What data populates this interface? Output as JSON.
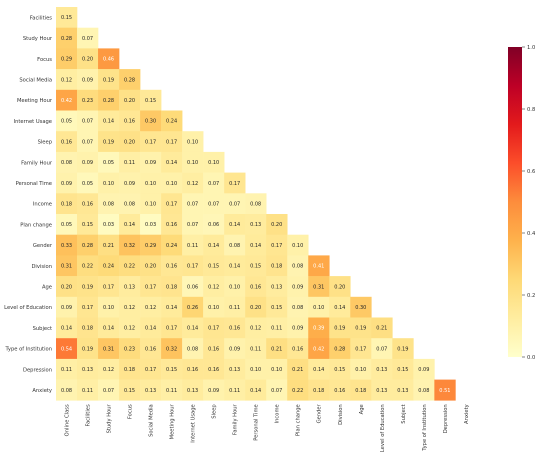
{
  "chart_data": {
    "type": "heatmap",
    "labels": [
      "Online Class",
      "Facilities",
      "Study Hour",
      "Focus",
      "Social Media",
      "Meeting Hour",
      "Internet Usage",
      "Sleep",
      "Family Hour",
      "Personal Time",
      "Income",
      "Plan change",
      "Gender",
      "Division",
      "Age",
      "Level of Education",
      "Subject",
      "Type of Institution",
      "Depression",
      "Anxiety"
    ],
    "rows": [
      {
        "label": "Facilities",
        "values": [
          "0.15"
        ]
      },
      {
        "label": "Study Hour",
        "values": [
          "0.28",
          "0.07"
        ]
      },
      {
        "label": "Focus",
        "values": [
          "0.29",
          "0.20",
          "0.46"
        ]
      },
      {
        "label": "Social Media",
        "values": [
          "0.12",
          "0.09",
          "0.19",
          "0.28"
        ]
      },
      {
        "label": "Meeting Hour",
        "values": [
          "0.42",
          "0.23",
          "0.28",
          "0.20",
          "0.15"
        ]
      },
      {
        "label": "Internet Usage",
        "values": [
          "0.05",
          "0.07",
          "0.14",
          "0.16",
          "0.30",
          "0.24"
        ]
      },
      {
        "label": "Sleep",
        "values": [
          "0.16",
          "0.07",
          "0.19",
          "0.20",
          "0.17",
          "0.17",
          "0.10"
        ]
      },
      {
        "label": "Family Hour",
        "values": [
          "0.08",
          "0.09",
          "0.05",
          "0.11",
          "0.09",
          "0.14",
          "0.10",
          "0.10"
        ]
      },
      {
        "label": "Personal Time",
        "values": [
          "0.09",
          "0.05",
          "0.10",
          "0.09",
          "0.10",
          "0.10",
          "0.12",
          "0.07",
          "0.17"
        ]
      },
      {
        "label": "Income",
        "values": [
          "0.18",
          "0.16",
          "0.08",
          "0.08",
          "0.10",
          "0.17",
          "0.07",
          "0.07",
          "0.07",
          "0.08"
        ]
      },
      {
        "label": "Plan change",
        "values": [
          "0.05",
          "0.15",
          "0.03",
          "0.14",
          "0.03",
          "0.16",
          "0.07",
          "0.06",
          "0.14",
          "0.13",
          "0.20"
        ]
      },
      {
        "label": "Gender",
        "values": [
          "0.33",
          "0.28",
          "0.21",
          "0.32",
          "0.29",
          "0.24",
          "0.11",
          "0.14",
          "0.08",
          "0.14",
          "0.17",
          "0.10"
        ]
      },
      {
        "label": "Division",
        "values": [
          "0.31",
          "0.22",
          "0.24",
          "0.22",
          "0.20",
          "0.16",
          "0.17",
          "0.15",
          "0.14",
          "0.15",
          "0.18",
          "0.08",
          "0.41"
        ]
      },
      {
        "label": "Age",
        "values": [
          "0.20",
          "0.19",
          "0.17",
          "0.13",
          "0.17",
          "0.18",
          "0.06",
          "0.12",
          "0.10",
          "0.16",
          "0.13",
          "0.09",
          "0.31",
          "0.20"
        ]
      },
      {
        "label": "Level of Education",
        "values": [
          "0.09",
          "0.17",
          "0.10",
          "0.12",
          "0.12",
          "0.14",
          "0.26",
          "0.10",
          "0.11",
          "0.20",
          "0.15",
          "0.08",
          "0.10",
          "0.14",
          "0.30"
        ]
      },
      {
        "label": "Subject",
        "values": [
          "0.14",
          "0.18",
          "0.14",
          "0.12",
          "0.14",
          "0.17",
          "0.14",
          "0.17",
          "0.16",
          "0.12",
          "0.11",
          "0.09",
          "0.39",
          "0.19",
          "0.19",
          "0.21"
        ]
      },
      {
        "label": "Type of Institution",
        "values": [
          "0.54",
          "0.19",
          "0.31",
          "0.23",
          "0.16",
          "0.32",
          "0.08",
          "0.16",
          "0.09",
          "0.11",
          "0.21",
          "0.16",
          "0.42",
          "0.28",
          "0.17",
          "0.07",
          "0.19"
        ]
      },
      {
        "label": "Depression",
        "values": [
          "0.11",
          "0.13",
          "0.12",
          "0.18",
          "0.17",
          "0.15",
          "0.16",
          "0.16",
          "0.13",
          "0.10",
          "0.10",
          "0.21",
          "0.14",
          "0.15",
          "0.10",
          "0.13",
          "0.15",
          "0.09"
        ]
      },
      {
        "label": "Anxiety",
        "values": [
          "0.08",
          "0.11",
          "0.07",
          "0.15",
          "0.13",
          "0.11",
          "0.13",
          "0.09",
          "0.11",
          "0.14",
          "0.07",
          "0.22",
          "0.18",
          "0.16",
          "0.18",
          "0.13",
          "0.13",
          "0.08",
          "0.51"
        ]
      }
    ],
    "colorbar": {
      "min": 0.0,
      "max": 1.0,
      "ticks": [
        "0.0",
        "0.2",
        "0.4",
        "0.6",
        "0.8",
        "1.0"
      ],
      "colormap": "YlOrRd"
    }
  }
}
